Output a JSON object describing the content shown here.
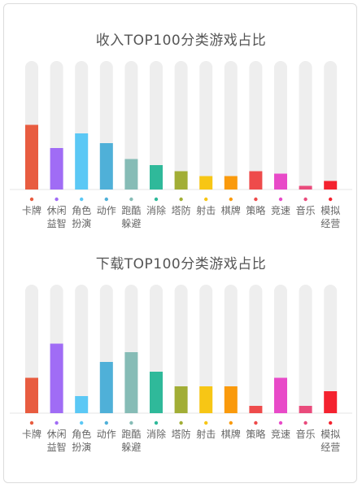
{
  "chart_data": [
    {
      "type": "bar",
      "title": "收入TOP100分类游戏占比",
      "categories": [
        [
          "卡牌"
        ],
        [
          "休闲",
          "益智"
        ],
        [
          "角色",
          "扮演"
        ],
        [
          "动作"
        ],
        [
          "跑酷",
          "躲避"
        ],
        [
          "消除"
        ],
        [
          "塔防"
        ],
        [
          "射击"
        ],
        [
          "棋牌"
        ],
        [
          "策略"
        ],
        [
          "竞速"
        ],
        [
          "音乐"
        ],
        [
          "模拟",
          "经营"
        ]
      ],
      "values": [
        53,
        34,
        46,
        38,
        25,
        20,
        15,
        11,
        11,
        15,
        13,
        3,
        7
      ],
      "ylim": [
        0,
        100
      ],
      "grid": false,
      "colors": [
        "#e85c40",
        "#a06cf5",
        "#5bc8f5",
        "#4fb0d8",
        "#86bcb6",
        "#2fb99a",
        "#a2ae36",
        "#f7c615",
        "#fa9a0c",
        "#ee4b4b",
        "#e84ac8",
        "#e94b7c",
        "#f4222f"
      ]
    },
    {
      "type": "bar",
      "title": "下载TOP100分类游戏占比",
      "categories": [
        [
          "卡牌"
        ],
        [
          "休闲",
          "益智"
        ],
        [
          "角色",
          "扮演"
        ],
        [
          "动作"
        ],
        [
          "跑酷",
          "躲避"
        ],
        [
          "消除"
        ],
        [
          "塔防"
        ],
        [
          "射击"
        ],
        [
          "棋牌"
        ],
        [
          "策略"
        ],
        [
          "竞速"
        ],
        [
          "音乐"
        ],
        [
          "模拟",
          "经营"
        ]
      ],
      "values": [
        29,
        57,
        14,
        42,
        50,
        34,
        22,
        22,
        22,
        6,
        29,
        6,
        18
      ],
      "ylim": [
        0,
        100
      ],
      "grid": false,
      "colors": [
        "#e85c40",
        "#a06cf5",
        "#5bc8f5",
        "#4fb0d8",
        "#86bcb6",
        "#2fb99a",
        "#a2ae36",
        "#f7c615",
        "#fa9a0c",
        "#ee4b4b",
        "#e84ac8",
        "#e94b7c",
        "#f4222f"
      ]
    }
  ],
  "style": {
    "track_color": "#eeeeee",
    "baseline_color": "#e4e4e4"
  }
}
